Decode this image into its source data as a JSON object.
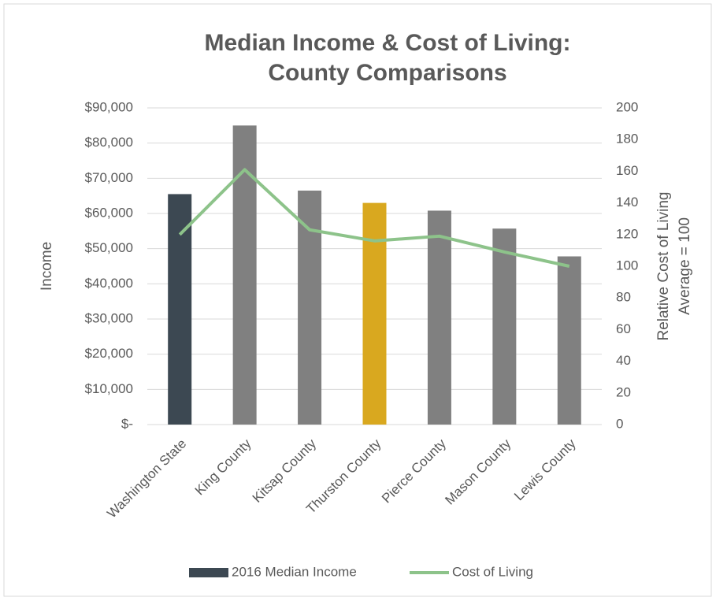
{
  "chart_data": {
    "type": "bar_line",
    "title": [
      "Median Income & Cost of Living:",
      "County Comparisons"
    ],
    "y_label": "Income",
    "y2_label": [
      "Relative Cost of Living",
      "Average = 100"
    ],
    "categories": [
      "Washington State",
      "King County",
      "Kitsap County",
      "Thurston County",
      "Pierce County",
      "Mason County",
      "Lewis County"
    ],
    "series": [
      {
        "name": "2016 Median Income",
        "type": "bar",
        "color": "#808080",
        "colors": [
          "#3c4852",
          "#808080",
          "#808080",
          "#d9a81f",
          "#808080",
          "#808080",
          "#808080"
        ],
        "values": [
          65500,
          85000,
          66500,
          63000,
          60800,
          55700,
          47800
        ]
      },
      {
        "name": "Cost of Living",
        "type": "line",
        "axis": "y2",
        "color": "#8dc38a",
        "values": [
          120,
          161,
          123,
          116,
          119,
          109,
          100
        ]
      }
    ],
    "ylim": [
      0,
      90000
    ],
    "yticks": [
      {
        "value": 0,
        "label": "$-"
      },
      {
        "value": 10000,
        "label": "$10,000"
      },
      {
        "value": 20000,
        "label": "$20,000"
      },
      {
        "value": 30000,
        "label": "$30,000"
      },
      {
        "value": 40000,
        "label": "$40,000"
      },
      {
        "value": 50000,
        "label": "$50,000"
      },
      {
        "value": 60000,
        "label": "$60,000"
      },
      {
        "value": 70000,
        "label": "$70,000"
      },
      {
        "value": 80000,
        "label": "$80,000"
      },
      {
        "value": 90000,
        "label": "$90,000"
      }
    ],
    "y2lim": [
      0,
      200
    ],
    "y2ticks": [
      0,
      20,
      40,
      60,
      80,
      100,
      120,
      140,
      160,
      180,
      200
    ],
    "grid": true,
    "legend": "bottom"
  }
}
